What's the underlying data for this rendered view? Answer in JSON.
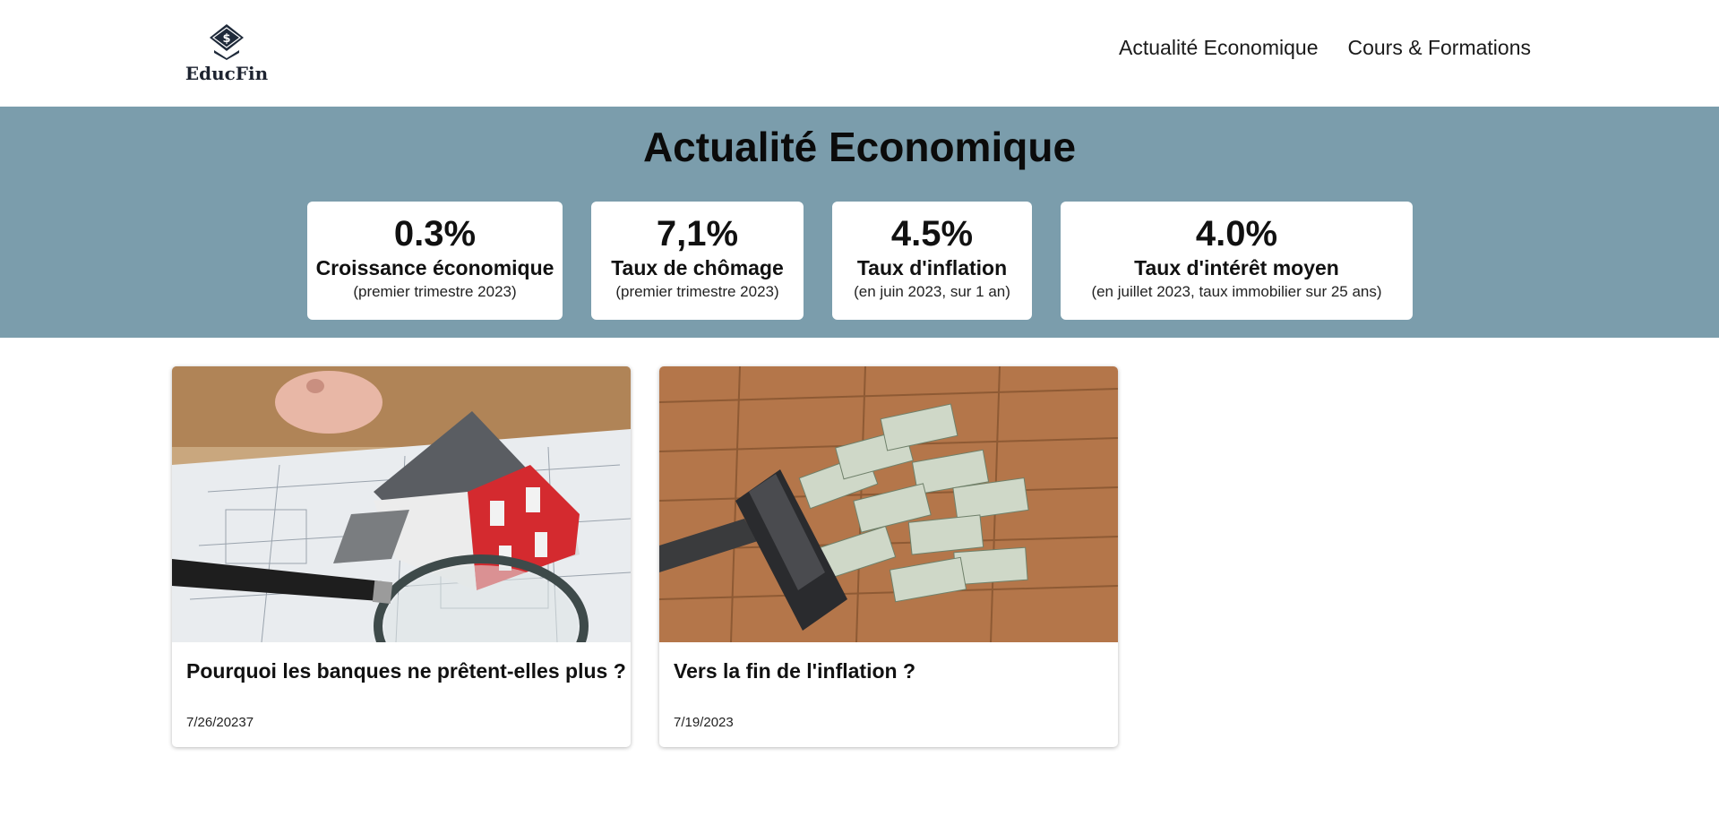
{
  "header": {
    "brand": "EducFin",
    "nav": [
      {
        "label": "Actualité Economique"
      },
      {
        "label": "Cours & Formations"
      }
    ]
  },
  "hero": {
    "title": "Actualité Economique",
    "stats": [
      {
        "value": "0.3%",
        "label": "Croissance économique",
        "sub": "(premier trimestre 2023)"
      },
      {
        "value": "7,1%",
        "label": "Taux de chômage",
        "sub": "(premier trimestre 2023)"
      },
      {
        "value": "4.5%",
        "label": "Taux d'inflation",
        "sub": "(en juin 2023, sur 1 an)"
      },
      {
        "value": "4.0%",
        "label": "Taux d'intérêt moyen",
        "sub": "(en juillet 2023, taux immobilier sur 25 ans)"
      }
    ]
  },
  "articles": [
    {
      "title": "Pourquoi les banques ne prêtent-elles plus ?",
      "date": "7/26/20237"
    },
    {
      "title": "Vers la fin de l'inflation ?",
      "date": "7/19/2023"
    }
  ],
  "colors": {
    "band": "#7b9dac",
    "house_roof": "#4a4d52",
    "house_wall": "#d42a2f",
    "floor": "#b4764a"
  }
}
